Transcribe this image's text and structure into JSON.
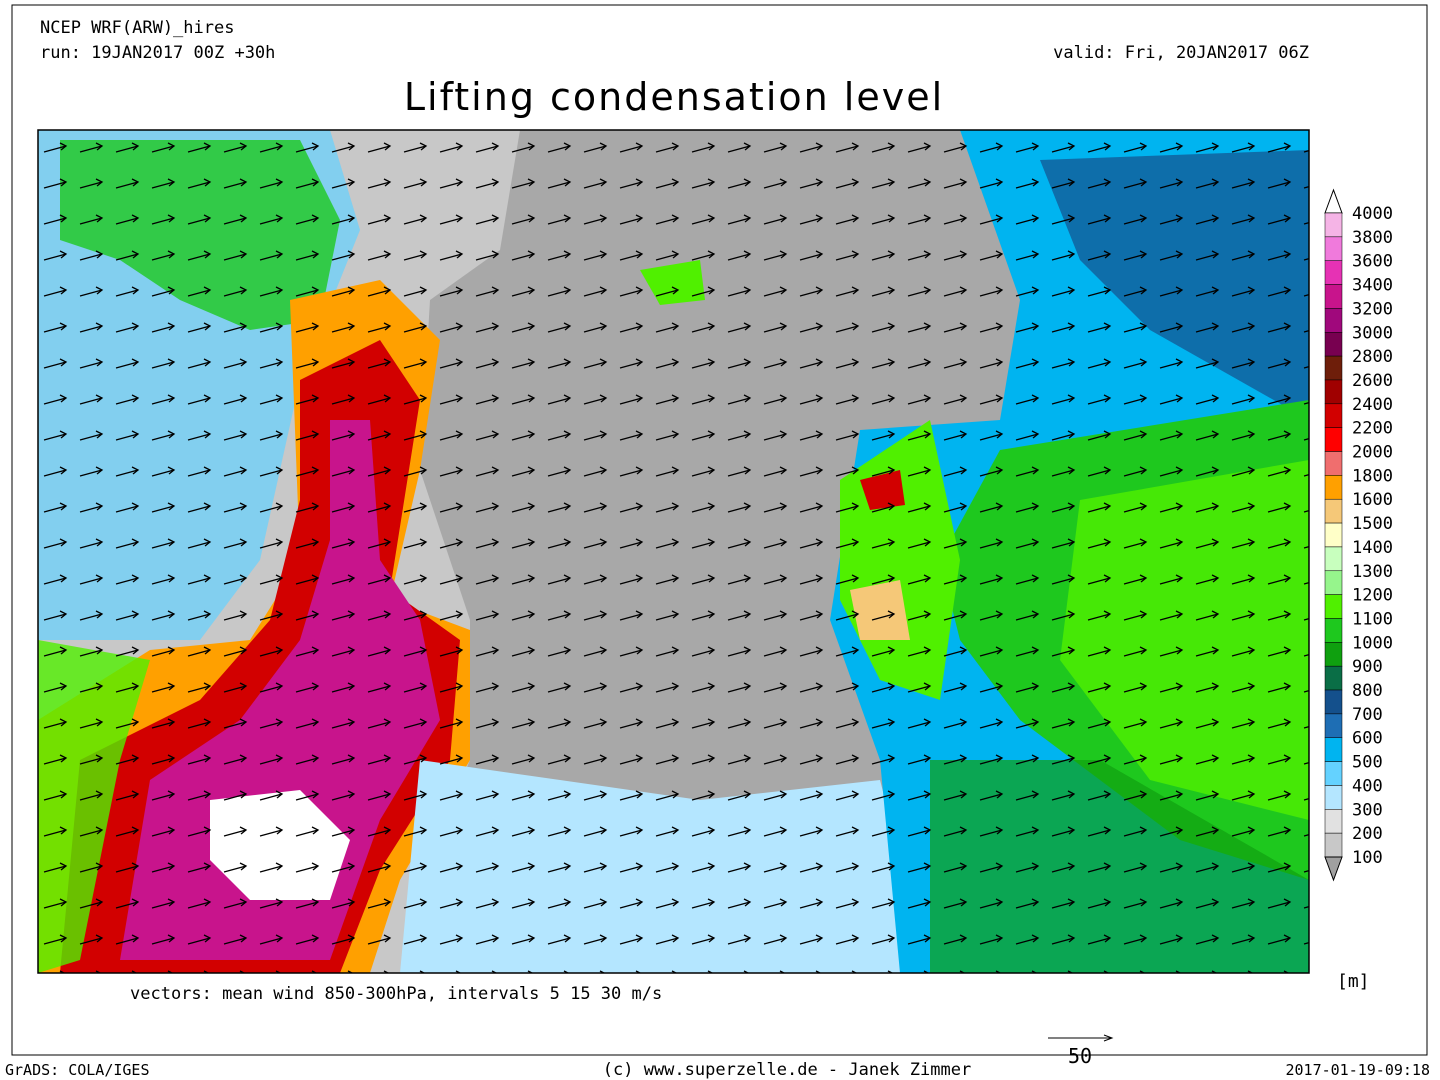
{
  "header": {
    "model": "NCEP WRF(ARW)_hires",
    "run": "run: 19JAN2017 00Z +30h",
    "valid": "valid: Fri, 20JAN2017 06Z",
    "title": "Lifting condensation level"
  },
  "colorbar": {
    "levels": [
      4000,
      3800,
      3600,
      3400,
      3200,
      3000,
      2800,
      2600,
      2400,
      2200,
      2000,
      1800,
      1600,
      1500,
      1400,
      1300,
      1200,
      1100,
      1000,
      900,
      800,
      700,
      600,
      500,
      400,
      300,
      200,
      100
    ],
    "colors": [
      "#f5b4e6",
      "#f07adc",
      "#e632b4",
      "#c8148c",
      "#a0087c",
      "#780050",
      "#6e1e0a",
      "#a00000",
      "#d20000",
      "#ff0000",
      "#f06e6e",
      "#ffa000",
      "#f5c878",
      "#ffffc8",
      "#c8ffbe",
      "#96f58c",
      "#50f000",
      "#1ec81e",
      "#0fa00f",
      "#0a6e46",
      "#14508c",
      "#1e6eb4",
      "#00b4f0",
      "#64d2ff",
      "#b4e6ff",
      "#e1e1e1",
      "#c8c8c8"
    ],
    "above_color": "#ffffff",
    "below_color": "#a0a0a0",
    "unit": "[m]"
  },
  "vectors_note": "vectors: mean wind 850-300hPa, intervals 5 15 30 m/s",
  "reference_vector": {
    "label": 50
  },
  "footer": {
    "software": "GrADS: COLA/IGES",
    "credit": "(c) www.superzelle.de - Janek Zimmer",
    "timestamp": "2017-01-19-09:18"
  }
}
